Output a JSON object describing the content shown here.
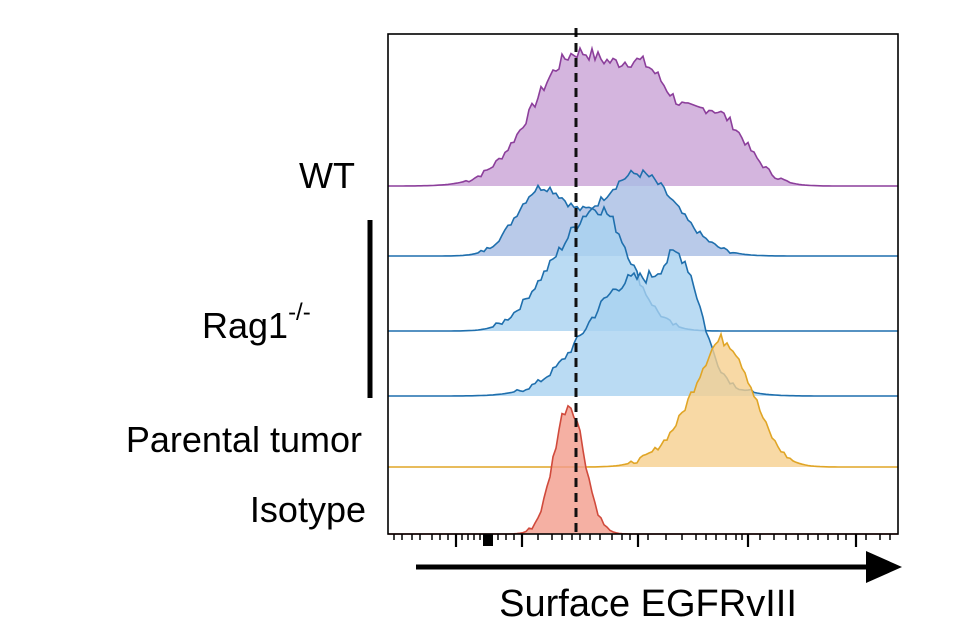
{
  "chart_data": {
    "type": "area",
    "title": "",
    "xlabel": "Surface EGFRvIII",
    "ylabel": "",
    "x_scale": "log",
    "grid": false,
    "legend": "none",
    "group_labels": {
      "wt": "WT",
      "rag1_base": "Rag1",
      "rag1_sup": "-/-",
      "parental": "Parental tumor",
      "isotype": "Isotype"
    },
    "reference_line": {
      "style": "dashed",
      "position": "isotype mode"
    },
    "series": [
      {
        "name": "WT",
        "color": "#8c3f9b",
        "fill": "#c9a3d6",
        "peaks": [
          {
            "pos": 0.37,
            "height": 1.0,
            "width": 0.085
          },
          {
            "pos": 0.51,
            "height": 0.6,
            "width": 0.05
          },
          {
            "pos": 0.64,
            "height": 0.55,
            "width": 0.06
          }
        ]
      },
      {
        "name": "Rag1-/- #1",
        "color": "#1f6fad",
        "fill": "#a7bde3",
        "peaks": [
          {
            "pos": 0.3,
            "height": 0.62,
            "width": 0.05
          },
          {
            "pos": 0.49,
            "height": 0.78,
            "width": 0.075
          }
        ]
      },
      {
        "name": "Rag1-/- #2",
        "color": "#1f6fad",
        "fill": "#a9d2f0",
        "peaks": [
          {
            "pos": 0.415,
            "height": 0.85,
            "width": 0.06
          },
          {
            "pos": 0.31,
            "height": 0.25,
            "width": 0.05
          }
        ]
      },
      {
        "name": "Rag1-/- #3",
        "color": "#1f6fad",
        "fill": "#a9d2f0",
        "peaks": [
          {
            "pos": 0.48,
            "height": 0.85,
            "width": 0.09
          },
          {
            "pos": 0.58,
            "height": 0.55,
            "width": 0.035
          }
        ]
      },
      {
        "name": "Parental tumor",
        "color": "#e0a526",
        "fill": "#f6cf8e",
        "peaks": [
          {
            "pos": 0.66,
            "height": 1.0,
            "width": 0.055
          },
          {
            "pos": 0.56,
            "height": 0.12,
            "width": 0.05
          }
        ]
      },
      {
        "name": "Isotype",
        "color": "#d04a3c",
        "fill": "#f29c8c",
        "peaks": [
          {
            "pos": 0.355,
            "height": 1.0,
            "width": 0.03
          }
        ]
      }
    ]
  }
}
